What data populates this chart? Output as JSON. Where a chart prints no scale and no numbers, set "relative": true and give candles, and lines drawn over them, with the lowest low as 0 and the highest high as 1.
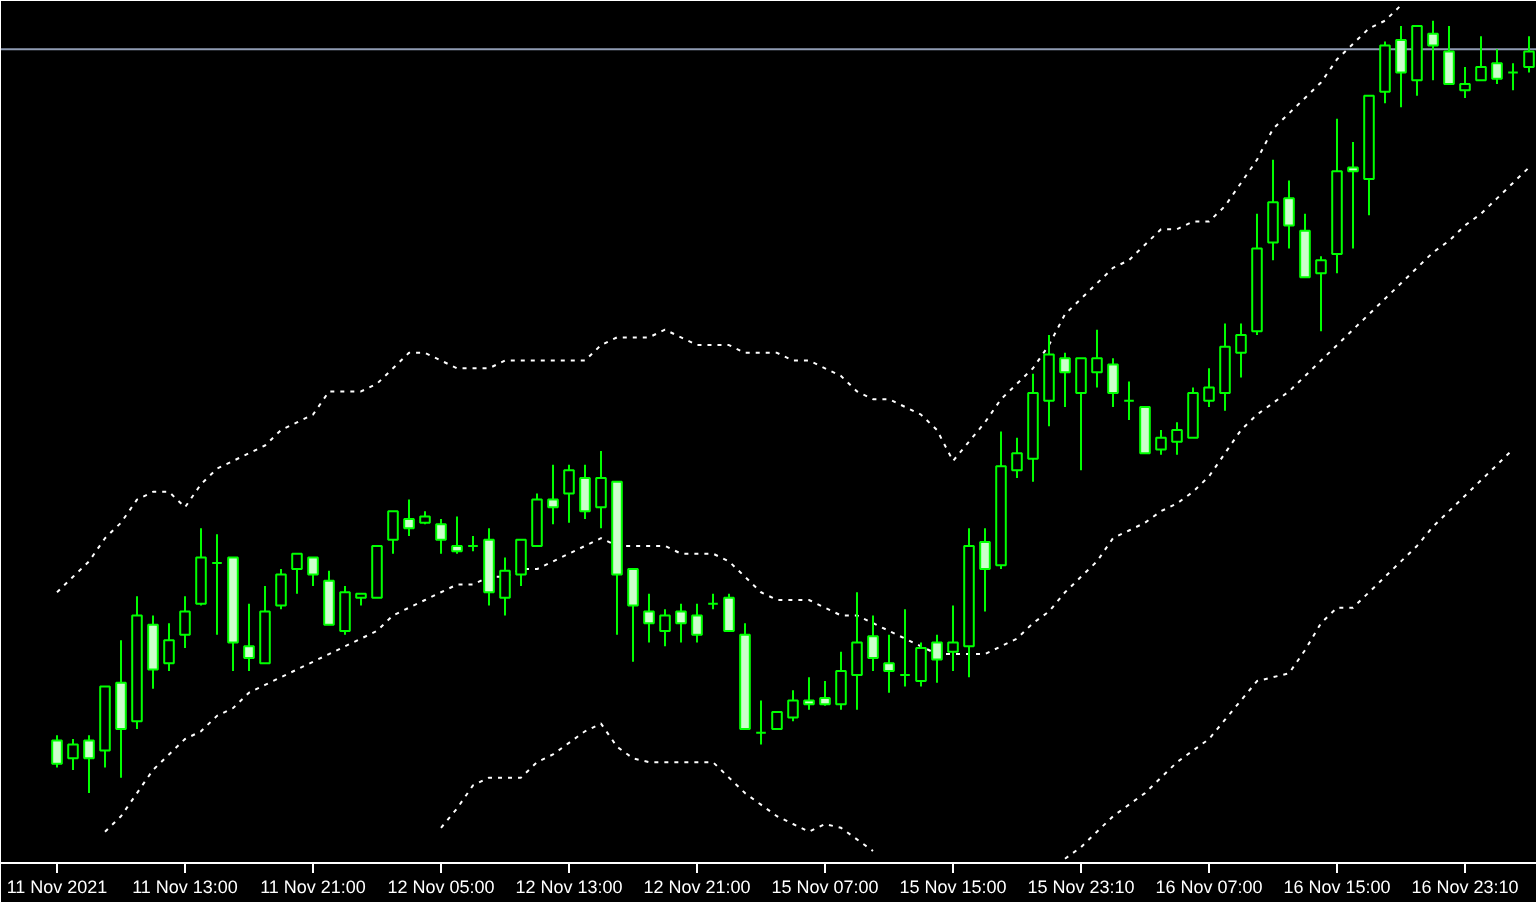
{
  "chart_data": {
    "type": "candlestick",
    "relative": true,
    "tick_labels": "x",
    "color": "#00ff00",
    "categories": [
      "11 Nov 2021",
      null,
      null,
      null,
      null,
      null,
      null,
      null,
      "11 Nov 13:00",
      null,
      null,
      null,
      null,
      null,
      null,
      null,
      "11 Nov 21:00",
      null,
      null,
      null,
      null,
      null,
      null,
      null,
      "12 Nov 05:00",
      null,
      null,
      null,
      null,
      null,
      null,
      null,
      "12 Nov 13:00",
      null,
      null,
      null,
      null,
      null,
      null,
      null,
      "12 Nov 21:00",
      null,
      null,
      null,
      null,
      null,
      null,
      null,
      "15 Nov 07:00",
      null,
      null,
      null,
      null,
      null,
      null,
      null,
      "15 Nov 15:00",
      null,
      null,
      null,
      null,
      null,
      null,
      null,
      "15 Nov 23:10",
      null,
      null,
      null,
      null,
      null,
      null,
      null,
      "16 Nov 07:00",
      null,
      null,
      null,
      null,
      null,
      null,
      null,
      "16 Nov 15:00",
      null,
      null,
      null,
      null,
      null,
      null,
      null,
      "16 Nov 23:10",
      null,
      null,
      null,
      null
    ],
    "ohlc": [
      [
        0.068,
        0.075,
        0.033,
        0.038
      ],
      [
        0.045,
        0.07,
        0.03,
        0.063
      ],
      [
        0.068,
        0.075,
        0,
        0.045
      ],
      [
        0.055,
        0.138,
        0.033,
        0.138
      ],
      [
        0.143,
        0.198,
        0.02,
        0.083
      ],
      [
        0.093,
        0.255,
        0.083,
        0.23
      ],
      [
        0.218,
        0.23,
        0.135,
        0.16
      ],
      [
        0.168,
        0.22,
        0.158,
        0.198
      ],
      [
        0.205,
        0.255,
        0.188,
        0.235
      ],
      [
        0.245,
        0.343,
        0.243,
        0.305
      ],
      [
        0.298,
        0.335,
        0.205,
        0.298
      ],
      [
        0.305,
        0.305,
        0.158,
        0.195
      ],
      [
        0.19,
        0.245,
        0.158,
        0.175
      ],
      [
        0.168,
        0.268,
        0.168,
        0.235
      ],
      [
        0.243,
        0.29,
        0.238,
        0.283
      ],
      [
        0.29,
        0.31,
        0.258,
        0.31
      ],
      [
        0.305,
        0.305,
        0.268,
        0.283
      ],
      [
        0.275,
        0.288,
        0.218,
        0.218
      ],
      [
        0.21,
        0.268,
        0.205,
        0.26
      ],
      [
        0.253,
        0.258,
        0.243,
        0.258
      ],
      [
        0.253,
        0.32,
        0.253,
        0.32
      ],
      [
        0.328,
        0.365,
        0.31,
        0.365
      ],
      [
        0.355,
        0.38,
        0.333,
        0.343
      ],
      [
        0.35,
        0.365,
        0.348,
        0.358
      ],
      [
        0.348,
        0.355,
        0.31,
        0.328
      ],
      [
        0.32,
        0.358,
        0.31,
        0.313
      ],
      [
        0.32,
        0.333,
        0.313,
        0.32
      ],
      [
        0.328,
        0.343,
        0.243,
        0.26
      ],
      [
        0.253,
        0.305,
        0.23,
        0.288
      ],
      [
        0.283,
        0.328,
        0.268,
        0.328
      ],
      [
        0.32,
        0.388,
        0.32,
        0.38
      ],
      [
        0.38,
        0.425,
        0.348,
        0.37
      ],
      [
        0.388,
        0.425,
        0.35,
        0.418
      ],
      [
        0.408,
        0.425,
        0.355,
        0.365
      ],
      [
        0.37,
        0.443,
        0.343,
        0.408
      ],
      [
        0.403,
        0.403,
        0.205,
        0.283
      ],
      [
        0.29,
        0.29,
        0.17,
        0.243
      ],
      [
        0.235,
        0.258,
        0.195,
        0.22
      ],
      [
        0.21,
        0.238,
        0.19,
        0.23
      ],
      [
        0.235,
        0.245,
        0.195,
        0.22
      ],
      [
        0.23,
        0.245,
        0.195,
        0.205
      ],
      [
        0.245,
        0.258,
        0.238,
        0.245
      ],
      [
        0.253,
        0.258,
        0.21,
        0.21
      ],
      [
        0.205,
        0.22,
        0.083,
        0.083
      ],
      [
        0.078,
        0.12,
        0.063,
        0.078
      ],
      [
        0.083,
        0.105,
        0.083,
        0.105
      ],
      [
        0.098,
        0.133,
        0.093,
        0.12
      ],
      [
        0.12,
        0.15,
        0.108,
        0.115
      ],
      [
        0.123,
        0.145,
        0.113,
        0.115
      ],
      [
        0.115,
        0.183,
        0.108,
        0.158
      ],
      [
        0.153,
        0.26,
        0.108,
        0.195
      ],
      [
        0.203,
        0.23,
        0.158,
        0.175
      ],
      [
        0.168,
        0.205,
        0.13,
        0.158
      ],
      [
        0.153,
        0.238,
        0.138,
        0.153
      ],
      [
        0.145,
        0.195,
        0.138,
        0.188
      ],
      [
        0.195,
        0.205,
        0.143,
        0.173
      ],
      [
        0.183,
        0.243,
        0.158,
        0.195
      ],
      [
        0.19,
        0.343,
        0.15,
        0.32
      ],
      [
        0.325,
        0.343,
        0.235,
        0.29
      ],
      [
        0.295,
        0.468,
        0.29,
        0.423
      ],
      [
        0.418,
        0.46,
        0.408,
        0.44
      ],
      [
        0.433,
        0.543,
        0.403,
        0.518
      ],
      [
        0.508,
        0.593,
        0.475,
        0.568
      ],
      [
        0.563,
        0.57,
        0.5,
        0.545
      ],
      [
        0.518,
        0.563,
        0.418,
        0.563
      ],
      [
        0.545,
        0.6,
        0.525,
        0.563
      ],
      [
        0.555,
        0.563,
        0.5,
        0.518
      ],
      [
        0.508,
        0.533,
        0.483,
        0.508
      ],
      [
        0.5,
        0.5,
        0.44,
        0.44
      ],
      [
        0.445,
        0.47,
        0.438,
        0.46
      ],
      [
        0.455,
        0.48,
        0.438,
        0.47
      ],
      [
        0.46,
        0.525,
        0.46,
        0.518
      ],
      [
        0.508,
        0.55,
        0.5,
        0.525
      ],
      [
        0.518,
        0.608,
        0.495,
        0.578
      ],
      [
        0.57,
        0.608,
        0.538,
        0.593
      ],
      [
        0.598,
        0.75,
        0.593,
        0.705
      ],
      [
        0.713,
        0.82,
        0.69,
        0.765
      ],
      [
        0.77,
        0.793,
        0.705,
        0.735
      ],
      [
        0.728,
        0.75,
        0.668,
        0.668
      ],
      [
        0.673,
        0.695,
        0.598,
        0.69
      ],
      [
        0.698,
        0.873,
        0.673,
        0.805
      ],
      [
        0.81,
        0.843,
        0.705,
        0.805
      ],
      [
        0.795,
        0.903,
        0.748,
        0.903
      ],
      [
        0.908,
        0.973,
        0.893,
        0.968
      ],
      [
        0.975,
        0.993,
        0.888,
        0.933
      ],
      [
        0.923,
        0.993,
        0.903,
        0.993
      ],
      [
        0.983,
        1,
        0.923,
        0.968
      ],
      [
        0.96,
        0.993,
        0.918,
        0.918
      ],
      [
        0.91,
        0.94,
        0.9,
        0.918
      ],
      [
        0.923,
        0.98,
        0.923,
        0.94
      ],
      [
        0.945,
        0.963,
        0.918,
        0.925
      ],
      [
        0.933,
        0.945,
        0.91,
        0.933
      ],
      [
        0.94,
        0.98,
        0.933,
        0.96
      ]
    ],
    "series": [
      {
        "type": "line",
        "color": "#ffffff",
        "line_style": "dashed",
        "values": [
          0.26,
          0.28,
          0.3,
          0.33,
          0.35,
          0.38,
          0.39,
          0.39,
          0.37,
          0.4,
          0.42,
          0.43,
          0.44,
          0.45,
          0.47,
          0.48,
          0.49,
          0.52,
          0.52,
          0.52,
          0.53,
          0.55,
          0.57,
          0.57,
          0.56,
          0.55,
          0.55,
          0.55,
          0.56,
          0.56,
          0.56,
          0.56,
          0.56,
          0.56,
          0.58,
          0.59,
          0.59,
          0.59,
          0.6,
          0.59,
          0.58,
          0.58,
          0.58,
          0.57,
          0.57,
          0.57,
          0.56,
          0.56,
          0.55,
          0.54,
          0.52,
          0.51,
          0.51,
          0.5,
          0.49,
          0.47,
          0.43,
          0.455,
          0.48,
          0.51,
          0.53,
          0.55,
          0.58,
          0.62,
          0.64,
          0.66,
          0.68,
          0.69,
          0.71,
          0.73,
          0.73,
          0.74,
          0.74,
          0.76,
          0.79,
          0.82,
          0.86,
          0.88,
          0.9,
          0.92,
          0.95,
          0.97,
          0.99,
          1.0,
          1.02,
          null,
          null,
          null,
          null,
          null,
          null,
          null,
          null
        ]
      },
      {
        "type": "line",
        "color": "#ffffff",
        "line_style": "dashed",
        "values": [
          null,
          null,
          null,
          -0.05,
          -0.03,
          0.0,
          0.03,
          0.05,
          0.07,
          0.08,
          0.1,
          0.11,
          0.13,
          0.14,
          0.15,
          0.16,
          0.17,
          0.18,
          0.19,
          0.2,
          0.21,
          0.23,
          0.24,
          0.25,
          0.26,
          0.27,
          0.27,
          0.28,
          0.28,
          0.29,
          0.29,
          0.3,
          0.31,
          0.32,
          0.33,
          0.32,
          0.32,
          0.32,
          0.32,
          0.31,
          0.31,
          0.31,
          0.3,
          0.28,
          0.26,
          0.25,
          0.25,
          0.25,
          0.24,
          0.23,
          0.23,
          0.22,
          0.21,
          0.2,
          0.19,
          0.18,
          0.18,
          0.18,
          0.18,
          0.19,
          0.2,
          0.22,
          0.235,
          0.26,
          0.28,
          0.3,
          0.33,
          0.34,
          0.35,
          0.365,
          0.375,
          0.39,
          0.41,
          0.44,
          0.47,
          0.49,
          0.505,
          0.52,
          0.54,
          0.56,
          0.58,
          0.6,
          0.62,
          0.64,
          0.66,
          0.68,
          0.7,
          0.715,
          0.735,
          0.75,
          0.77,
          0.79,
          0.81
        ]
      },
      {
        "type": "line",
        "color": "#ffffff",
        "line_style": "dashed",
        "values": [
          null,
          null,
          null,
          null,
          null,
          null,
          null,
          null,
          null,
          null,
          null,
          null,
          null,
          null,
          null,
          null,
          null,
          null,
          null,
          null,
          null,
          null,
          null,
          null,
          -0.045,
          -0.02,
          0.01,
          0.02,
          0.02,
          0.02,
          0.04,
          0.05,
          0.065,
          0.08,
          0.09,
          0.06,
          0.045,
          0.04,
          0.04,
          0.04,
          0.04,
          0.04,
          0.02,
          0.0,
          -0.015,
          -0.03,
          -0.04,
          -0.05,
          -0.04,
          -0.045,
          -0.06,
          -0.075,
          null,
          null,
          null,
          null,
          null,
          null,
          null,
          null,
          null,
          null,
          null,
          -0.085,
          -0.07,
          -0.05,
          -0.03,
          -0.015,
          0.0,
          0.02,
          0.04,
          0.055,
          0.07,
          0.095,
          0.12,
          0.145,
          0.15,
          0.155,
          0.185,
          0.22,
          0.24,
          0.24,
          0.26,
          0.28,
          0.3,
          0.32,
          0.345,
          0.365,
          0.385,
          0.405,
          0.425,
          0.445,
          null
        ]
      }
    ],
    "ref_lines": [
      {
        "axis": "y",
        "value": 0.963,
        "color": "#8f9bb3"
      }
    ]
  }
}
